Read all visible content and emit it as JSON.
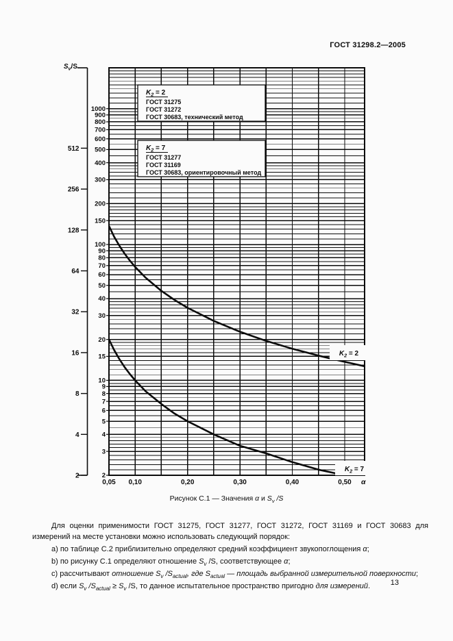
{
  "header": {
    "title": "ГОСТ 31298.2—2005"
  },
  "footer": {
    "page_number": "13"
  },
  "caption": {
    "segments": [
      {
        "t": "Рисунок С.1 — Значения  "
      },
      {
        "t": "α",
        "it": true
      },
      {
        "t": " и "
      },
      {
        "t": "S",
        "it": true
      },
      {
        "t": "v",
        "sub": true,
        "it": true
      },
      {
        "t": " /S",
        "it": true
      }
    ]
  },
  "chart_data": {
    "type": "line",
    "title": "Рисунок С.1 — Значения α и Sv/S",
    "xlabel": "α",
    "ylabel": "Sv/S",
    "grid": true,
    "x_axis": {
      "scale": "linear",
      "min": 0.05,
      "max": 0.538,
      "gridline_step": 0.05,
      "ticks": [
        0.05,
        0.1,
        0.2,
        0.3,
        0.4,
        0.5
      ],
      "tick_labels": [
        "0,05",
        "0,10",
        "0,20",
        "0,30",
        "0,40",
        "0,50"
      ],
      "axis_symbol": "α"
    },
    "y_axis_inner": {
      "scale": "log",
      "min": 2,
      "max": 2000,
      "tick_values": [
        1000,
        900,
        800,
        700,
        600,
        500,
        400,
        300,
        200,
        150,
        100,
        90,
        80,
        70,
        60,
        50,
        40,
        30,
        20,
        15,
        10,
        9,
        8,
        7,
        6,
        5,
        4,
        3,
        2
      ]
    },
    "y_axis_outer": {
      "label": "Sv/S",
      "label_parts": {
        "base": "S",
        "sub": "v",
        "rest": "/S"
      },
      "tick_values": [
        512,
        256,
        128,
        64,
        32,
        16,
        8,
        4,
        2
      ]
    },
    "series": [
      {
        "name": "K2 = 2",
        "label_parts": {
          "base": "K",
          "sub": "2",
          "rest": " = 2"
        },
        "points": [
          [
            0.05,
            136.8
          ],
          [
            0.06,
            114.0
          ],
          [
            0.07,
            97.7
          ],
          [
            0.08,
            85.5
          ],
          [
            0.09,
            76.0
          ],
          [
            0.1,
            68.4
          ],
          [
            0.12,
            57.0
          ],
          [
            0.15,
            45.6
          ],
          [
            0.175,
            39.1
          ],
          [
            0.2,
            34.2
          ],
          [
            0.25,
            27.4
          ],
          [
            0.3,
            22.8
          ],
          [
            0.35,
            19.5
          ],
          [
            0.4,
            17.1
          ],
          [
            0.45,
            15.2
          ],
          [
            0.5,
            13.7
          ],
          [
            0.538,
            12.7
          ]
        ]
      },
      {
        "name": "K2 = 7",
        "label_parts": {
          "base": "K",
          "sub": "2",
          "rest": " = 7"
        },
        "points": [
          [
            0.05,
            20.0
          ],
          [
            0.06,
            16.7
          ],
          [
            0.07,
            14.3
          ],
          [
            0.08,
            12.5
          ],
          [
            0.09,
            11.1
          ],
          [
            0.1,
            10.0
          ],
          [
            0.12,
            8.3
          ],
          [
            0.15,
            6.7
          ],
          [
            0.175,
            5.7
          ],
          [
            0.2,
            5.0
          ],
          [
            0.25,
            4.0
          ],
          [
            0.3,
            3.3
          ],
          [
            0.35,
            2.9
          ],
          [
            0.4,
            2.5
          ],
          [
            0.45,
            2.2
          ],
          [
            0.5,
            2.0
          ]
        ]
      }
    ],
    "legend": [
      {
        "title": "K2 = 2",
        "title_parts": {
          "base": "K",
          "sub": "2",
          "rest": " = 2"
        },
        "lines": [
          "ГОСТ 31275",
          "ГОСТ 31272",
          "ГОСТ 30683, технический метод"
        ]
      },
      {
        "title": "K2 = 7",
        "title_parts": {
          "base": "K",
          "sub": "2",
          "rest": " = 7"
        },
        "lines": [
          "ГОСТ 31277",
          "ГОСТ 31169",
          "ГОСТ 30683, ориентировочный метод"
        ]
      }
    ]
  },
  "body": {
    "intro": [
      {
        "t": "Для оценки применимости ГОСТ 31275, ГОСТ 31277, ГОСТ 31272, ГОСТ 31169 и ГОСТ 30683 для измерений на месте установки можно использовать следующий порядок:"
      }
    ],
    "item_a": [
      {
        "t": "a) по таблице С.2 приблизительно определяют средний коэффициент звукопоглощения "
      },
      {
        "t": "α",
        "it": true
      },
      {
        "t": ";"
      }
    ],
    "item_b": [
      {
        "t": "b) по рисунку С.1 определяют отношение "
      },
      {
        "t": "S",
        "it": true
      },
      {
        "t": "v",
        "sub": true,
        "it": true
      },
      {
        "t": " /S, соответствующее "
      },
      {
        "t": "α",
        "it": true
      },
      {
        "t": ";"
      }
    ],
    "item_c": [
      {
        "t": "c) рассчитывают "
      },
      {
        "t": "отношение ",
        "it": true
      },
      {
        "t": "S",
        "it": true
      },
      {
        "t": "v",
        "sub": true,
        "it": true
      },
      {
        "t": " /S",
        "it": true
      },
      {
        "t": "actual",
        "sub": true,
        "it": true
      },
      {
        "t": ", где ",
        "it": true
      },
      {
        "t": "S",
        "it": true
      },
      {
        "t": "actual",
        "sub": true,
        "it": true
      },
      {
        "t": " — площадь выбранной измерительной поверхности",
        "it": true
      },
      {
        "t": ";"
      }
    ],
    "item_d": [
      {
        "t": "d) если "
      },
      {
        "t": "S",
        "it": true
      },
      {
        "t": "v",
        "sub": true,
        "it": true
      },
      {
        "t": " /S",
        "it": true
      },
      {
        "t": "actual",
        "sub": true,
        "it": true
      },
      {
        "t": " ≥ "
      },
      {
        "t": "S",
        "it": true
      },
      {
        "t": "v",
        "sub": true,
        "it": true
      },
      {
        "t": " /S, то данное испытательное пространство пригодно "
      },
      {
        "t": "для измерений",
        "it": true
      },
      {
        "t": "."
      }
    ]
  }
}
